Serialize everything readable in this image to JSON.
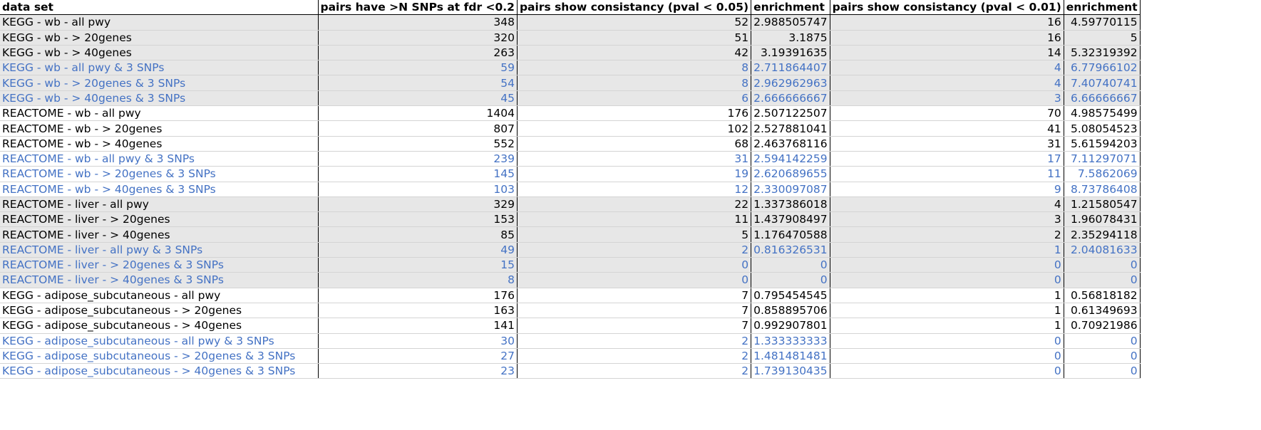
{
  "colors": {
    "blue_text": "#4472c4",
    "shaded_row": "#e7e7e7",
    "grid_line": "#d4d4d4"
  },
  "headers": [
    "data set",
    "pairs have >N SNPs at fdr <0.2",
    "pairs show consistancy (pval < 0.05)",
    "enrichment",
    "pairs show consistancy (pval < 0.01)",
    "enrichment"
  ],
  "rows": [
    {
      "cells": [
        "KEGG - wb - all pwy",
        "348",
        "52",
        "2.988505747",
        "16",
        "4.59770115"
      ],
      "shaded": true,
      "blue": false
    },
    {
      "cells": [
        "KEGG - wb - > 20genes",
        "320",
        "51",
        "3.1875",
        "16",
        "5"
      ],
      "shaded": true,
      "blue": false
    },
    {
      "cells": [
        "KEGG - wb - > 40genes",
        "263",
        "42",
        "3.19391635",
        "14",
        "5.32319392"
      ],
      "shaded": true,
      "blue": false
    },
    {
      "cells": [
        "KEGG - wb - all pwy & 3 SNPs",
        "59",
        "8",
        "2.711864407",
        "4",
        "6.77966102"
      ],
      "shaded": true,
      "blue": true
    },
    {
      "cells": [
        "KEGG - wb - > 20genes & 3 SNPs",
        "54",
        "8",
        "2.962962963",
        "4",
        "7.40740741"
      ],
      "shaded": true,
      "blue": true
    },
    {
      "cells": [
        "KEGG - wb - > 40genes & 3 SNPs",
        "45",
        "6",
        "2.666666667",
        "3",
        "6.66666667"
      ],
      "shaded": true,
      "blue": true
    },
    {
      "cells": [
        "REACTOME - wb - all pwy",
        "1404",
        "176",
        "2.507122507",
        "70",
        "4.98575499"
      ],
      "shaded": false,
      "blue": false
    },
    {
      "cells": [
        "REACTOME - wb - > 20genes",
        "807",
        "102",
        "2.527881041",
        "41",
        "5.08054523"
      ],
      "shaded": false,
      "blue": false
    },
    {
      "cells": [
        "REACTOME - wb - > 40genes",
        "552",
        "68",
        "2.463768116",
        "31",
        "5.61594203"
      ],
      "shaded": false,
      "blue": false
    },
    {
      "cells": [
        "REACTOME - wb - all pwy & 3 SNPs",
        "239",
        "31",
        "2.594142259",
        "17",
        "7.11297071"
      ],
      "shaded": false,
      "blue": true
    },
    {
      "cells": [
        "REACTOME - wb - > 20genes & 3 SNPs",
        "145",
        "19",
        "2.620689655",
        "11",
        "7.5862069"
      ],
      "shaded": false,
      "blue": true
    },
    {
      "cells": [
        "REACTOME - wb - > 40genes & 3 SNPs",
        "103",
        "12",
        "2.330097087",
        "9",
        "8.73786408"
      ],
      "shaded": false,
      "blue": true
    },
    {
      "cells": [
        "REACTOME - liver - all pwy",
        "329",
        "22",
        "1.337386018",
        "4",
        "1.21580547"
      ],
      "shaded": true,
      "blue": false
    },
    {
      "cells": [
        "REACTOME - liver - > 20genes",
        "153",
        "11",
        "1.437908497",
        "3",
        "1.96078431"
      ],
      "shaded": true,
      "blue": false
    },
    {
      "cells": [
        "REACTOME - liver - > 40genes",
        "85",
        "5",
        "1.176470588",
        "2",
        "2.35294118"
      ],
      "shaded": true,
      "blue": false
    },
    {
      "cells": [
        "REACTOME - liver - all pwy & 3 SNPs",
        "49",
        "2",
        "0.816326531",
        "1",
        "2.04081633"
      ],
      "shaded": true,
      "blue": true
    },
    {
      "cells": [
        "REACTOME - liver - > 20genes & 3 SNPs",
        "15",
        "0",
        "0",
        "0",
        "0"
      ],
      "shaded": true,
      "blue": true
    },
    {
      "cells": [
        "REACTOME - liver - > 40genes & 3 SNPs",
        "8",
        "0",
        "0",
        "0",
        "0"
      ],
      "shaded": true,
      "blue": true
    },
    {
      "cells": [
        "KEGG - adipose_subcutaneous - all pwy",
        "176",
        "7",
        "0.795454545",
        "1",
        "0.56818182"
      ],
      "shaded": false,
      "blue": false
    },
    {
      "cells": [
        "KEGG - adipose_subcutaneous - > 20genes",
        "163",
        "7",
        "0.858895706",
        "1",
        "0.61349693"
      ],
      "shaded": false,
      "blue": false
    },
    {
      "cells": [
        "KEGG - adipose_subcutaneous - > 40genes",
        "141",
        "7",
        "0.992907801",
        "1",
        "0.70921986"
      ],
      "shaded": false,
      "blue": false
    },
    {
      "cells": [
        "KEGG - adipose_subcutaneous - all pwy & 3 SNPs",
        "30",
        "2",
        "1.333333333",
        "0",
        "0"
      ],
      "shaded": false,
      "blue": true
    },
    {
      "cells": [
        "KEGG - adipose_subcutaneous - > 20genes & 3 SNPs",
        "27",
        "2",
        "1.481481481",
        "0",
        "0"
      ],
      "shaded": false,
      "blue": true
    },
    {
      "cells": [
        "KEGG - adipose_subcutaneous - > 40genes & 3 SNPs",
        "23",
        "2",
        "1.739130435",
        "0",
        "0"
      ],
      "shaded": false,
      "blue": true
    }
  ]
}
